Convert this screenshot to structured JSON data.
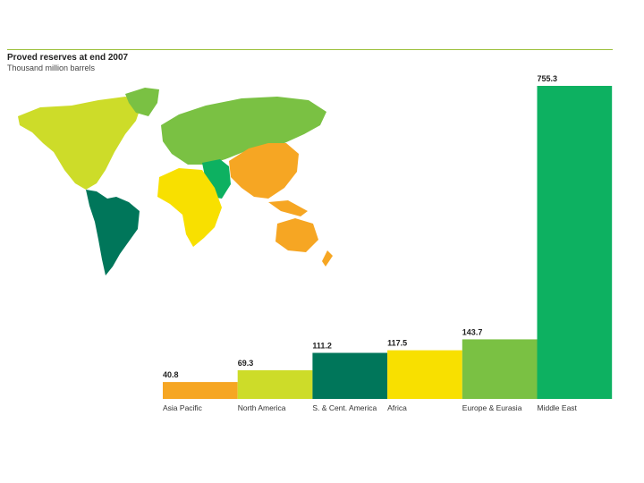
{
  "title": "Proved reserves at end 2007",
  "subtitle": "Thousand million barrels",
  "colors": {
    "asia_pacific": "#f6a623",
    "north_america": "#cddc29",
    "sc_america": "#00765a",
    "africa": "#f8e000",
    "europe_eurasia": "#7ac143",
    "middle_east": "#0db161"
  },
  "chart_data": {
    "type": "bar",
    "title": "Proved reserves at end 2007",
    "subtitle": "Thousand million barrels",
    "categories": [
      "Asia Pacific",
      "North America",
      "S. & Cent. America",
      "Africa",
      "Europe & Eurasia",
      "Middle East"
    ],
    "values": [
      40.8,
      69.3,
      111.2,
      117.5,
      143.7,
      755.3
    ],
    "value_labels": [
      "40.8",
      "69.3",
      "111.2",
      "117.5",
      "143.7",
      "755.3"
    ],
    "colors": [
      "#f6a623",
      "#cddc29",
      "#00765a",
      "#f8e000",
      "#7ac143",
      "#0db161"
    ],
    "ylim": [
      0,
      755.3
    ],
    "grid": false,
    "legend": "none"
  }
}
